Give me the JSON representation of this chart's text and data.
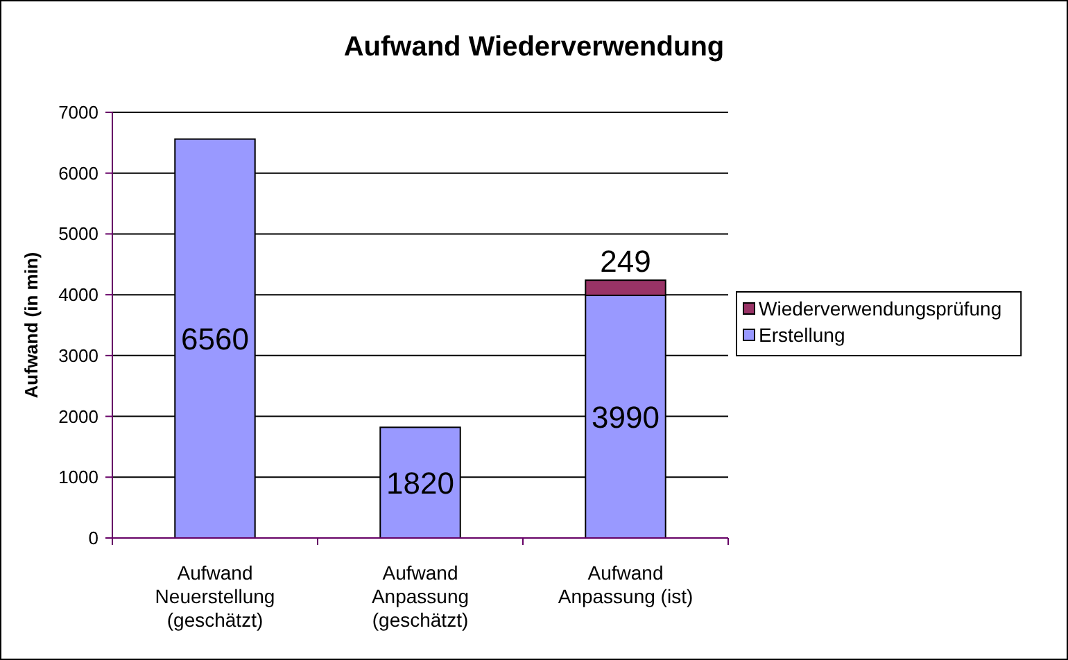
{
  "chart_data": {
    "type": "bar",
    "title": "Aufwand Wiederverwendung",
    "ylabel": "Aufwand (in min)",
    "categories": [
      "Aufwand Neuerstellung (geschätzt)",
      "Aufwand Anpassung (geschätzt)",
      "Aufwand Anpassung (ist)"
    ],
    "stacked": true,
    "series": [
      {
        "name": "Erstellung",
        "color": "#9999ff",
        "values": [
          6560,
          1820,
          3990
        ]
      },
      {
        "name": "Wiederverwendungsprüfung",
        "color": "#993366",
        "values": [
          null,
          null,
          249
        ]
      }
    ],
    "ylim": [
      0,
      7000
    ],
    "yticks": [
      0,
      1000,
      2000,
      3000,
      4000,
      5000,
      6000,
      7000
    ],
    "grid": "y",
    "legend": "right",
    "data_labels": true
  }
}
